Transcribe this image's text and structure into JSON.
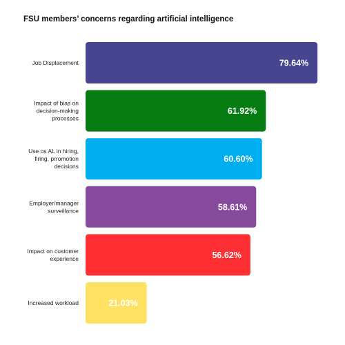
{
  "chart_data": {
    "type": "bar",
    "orientation": "horizontal",
    "title": "FSU members’ concerns regarding artificial intelligence",
    "categories": [
      [
        "Job Displacement"
      ],
      [
        "Impact of bias on",
        "decision-making",
        "processes"
      ],
      [
        "Use os AL in hiring,",
        "firing, prromotion",
        "decisions"
      ],
      [
        "Employer/manager",
        "surveillance"
      ],
      [
        "Impact on customer",
        "experience"
      ],
      [
        "Increased workload"
      ]
    ],
    "values": [
      79.64,
      61.92,
      60.6,
      58.61,
      56.62,
      21.03
    ],
    "value_labels": [
      "79.64%",
      "61.92%",
      "60.60%",
      "58.61%",
      "56.62%",
      "21.03%"
    ],
    "colors": [
      "#47458f",
      "#067c13",
      "#00aeef",
      "#874b9d",
      "#ff3033",
      "#ffe164"
    ],
    "xlim": [
      0,
      100
    ],
    "grid": false,
    "legend": "none"
  }
}
